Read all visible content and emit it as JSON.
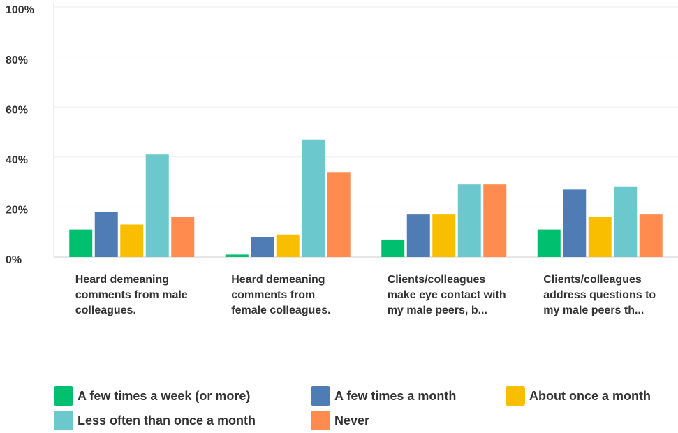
{
  "chart_data": {
    "type": "bar",
    "categories": [
      "Heard demeaning comments from male colleagues.",
      "Heard demeaning comments from female colleagues.",
      "Clients/colleagues make eye contact with my male peers, b...",
      "Clients/colleagues address questions to my male peers th..."
    ],
    "series": [
      {
        "name": "A few times a week (or more)",
        "color": "#00bf6f",
        "values": [
          11,
          1,
          7,
          11
        ]
      },
      {
        "name": "A few times a month",
        "color": "#507cb6",
        "values": [
          18,
          8,
          17,
          27
        ]
      },
      {
        "name": "About once a month",
        "color": "#f9be00",
        "values": [
          13,
          9,
          17,
          16
        ]
      },
      {
        "name": "Less often than once a month",
        "color": "#6bc8cd",
        "values": [
          41,
          47,
          29,
          28
        ]
      },
      {
        "name": "Never",
        "color": "#ff8b4f",
        "values": [
          16,
          34,
          29,
          17
        ]
      }
    ],
    "ylim": [
      0,
      100
    ],
    "yticks": [
      {
        "value": 0,
        "label": "0%"
      },
      {
        "value": 20,
        "label": "20%"
      },
      {
        "value": 40,
        "label": "40%"
      },
      {
        "value": 60,
        "label": "60%"
      },
      {
        "value": 80,
        "label": "80%"
      },
      {
        "value": 100,
        "label": "100%"
      }
    ],
    "grid": true,
    "legend": "bottom"
  }
}
